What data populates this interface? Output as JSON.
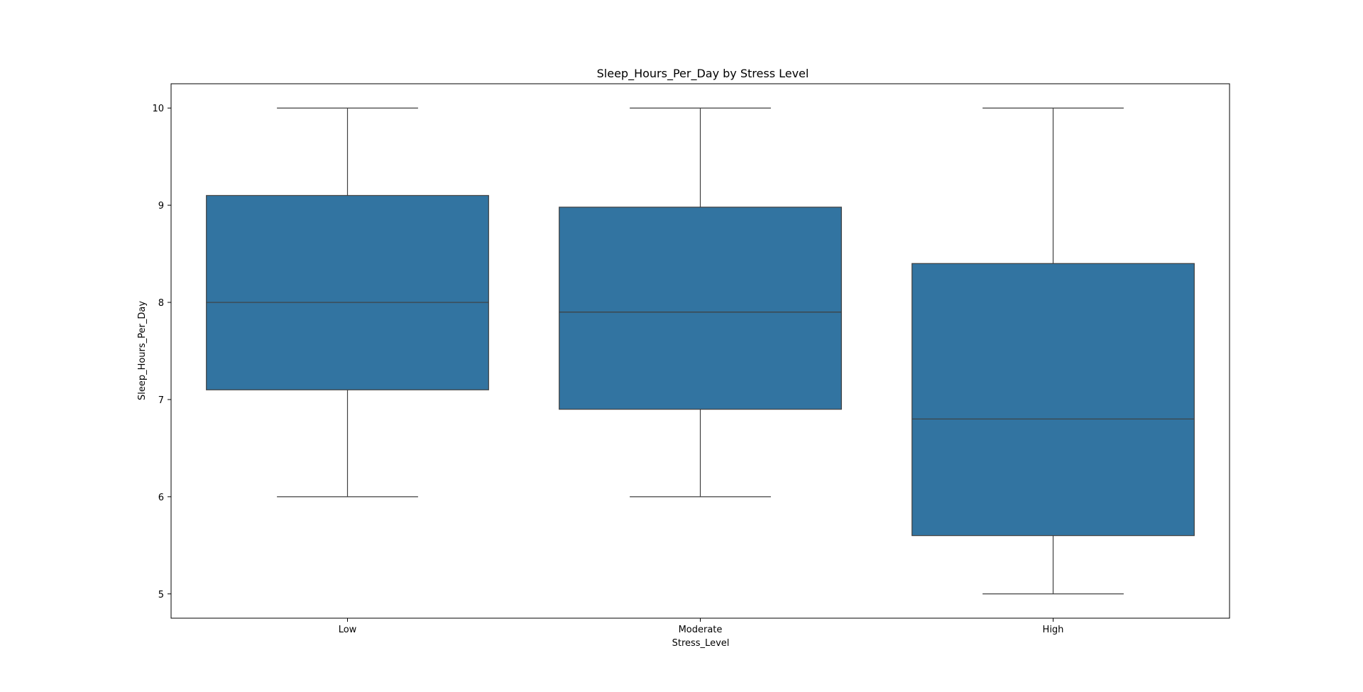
{
  "chart_data": {
    "type": "box",
    "title": "Sleep_Hours_Per_Day by Stress Level",
    "xlabel": "Stress_Level",
    "ylabel": "Sleep_Hours_Per_Day",
    "categories": [
      "Low",
      "Moderate",
      "High"
    ],
    "ylim": [
      4.75,
      10.25
    ],
    "yticks": [
      5,
      6,
      7,
      8,
      9,
      10
    ],
    "grid": false,
    "boxes": [
      {
        "category": "Low",
        "whisker_low": 6.0,
        "q1": 7.1,
        "median": 8.0,
        "q3": 9.1,
        "whisker_high": 10.0
      },
      {
        "category": "Moderate",
        "whisker_low": 6.0,
        "q1": 6.9,
        "median": 7.9,
        "q3": 8.98,
        "whisker_high": 10.0
      },
      {
        "category": "High",
        "whisker_low": 5.0,
        "q1": 5.6,
        "median": 6.8,
        "q3": 8.4,
        "whisker_high": 10.0
      }
    ],
    "colors": {
      "box_fill": "#3274a1",
      "line": "#3f3f3f",
      "axes": "#000000"
    }
  }
}
